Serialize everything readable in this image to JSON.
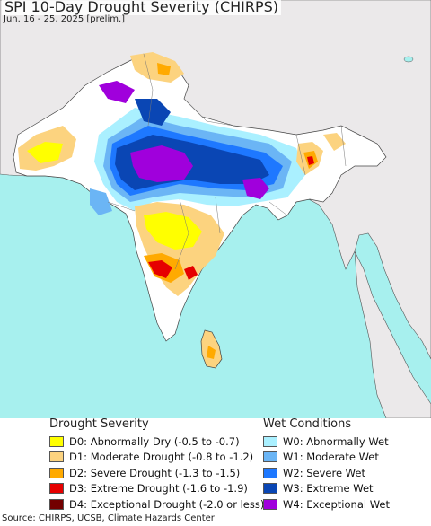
{
  "title": "SPI 10-Day Drought Severity (CHIRPS)",
  "subtitle": "Jun. 16 - 25, 2025 [prelim.]",
  "drought_legend": {
    "heading": "Drought Severity",
    "items": [
      {
        "label": "D0: Abnormally Dry (-0.5 to -0.7)",
        "color": "#ffff00"
      },
      {
        "label": "D1: Moderate Drought (-0.8 to -1.2)",
        "color": "#fcd37f"
      },
      {
        "label": "D2: Severe Drought (-1.3 to -1.5)",
        "color": "#ffaa00"
      },
      {
        "label": "D3: Extreme Drought (-1.6 to -1.9)",
        "color": "#e60000"
      },
      {
        "label": "D4: Exceptional Drought (-2.0 or less)",
        "color": "#730000"
      }
    ]
  },
  "wet_legend": {
    "heading": "Wet Conditions",
    "items": [
      {
        "label": "W0: Abnormally Wet",
        "color": "#aaf0ff"
      },
      {
        "label": "W1: Moderate Wet",
        "color": "#6bb5f5"
      },
      {
        "label": "W2: Severe Wet",
        "color": "#1e78ff"
      },
      {
        "label": "W3: Extreme Wet",
        "color": "#0a46b4"
      },
      {
        "label": "W4: Exceptional Wet",
        "color": "#a000dc"
      }
    ]
  },
  "source": "Source: CHIRPS, UCSB, Climate Hazards Center",
  "colors": {
    "ocean": "#a7f0ee",
    "land_outside": "#ebe9ea",
    "land_normal": "#ffffff"
  }
}
